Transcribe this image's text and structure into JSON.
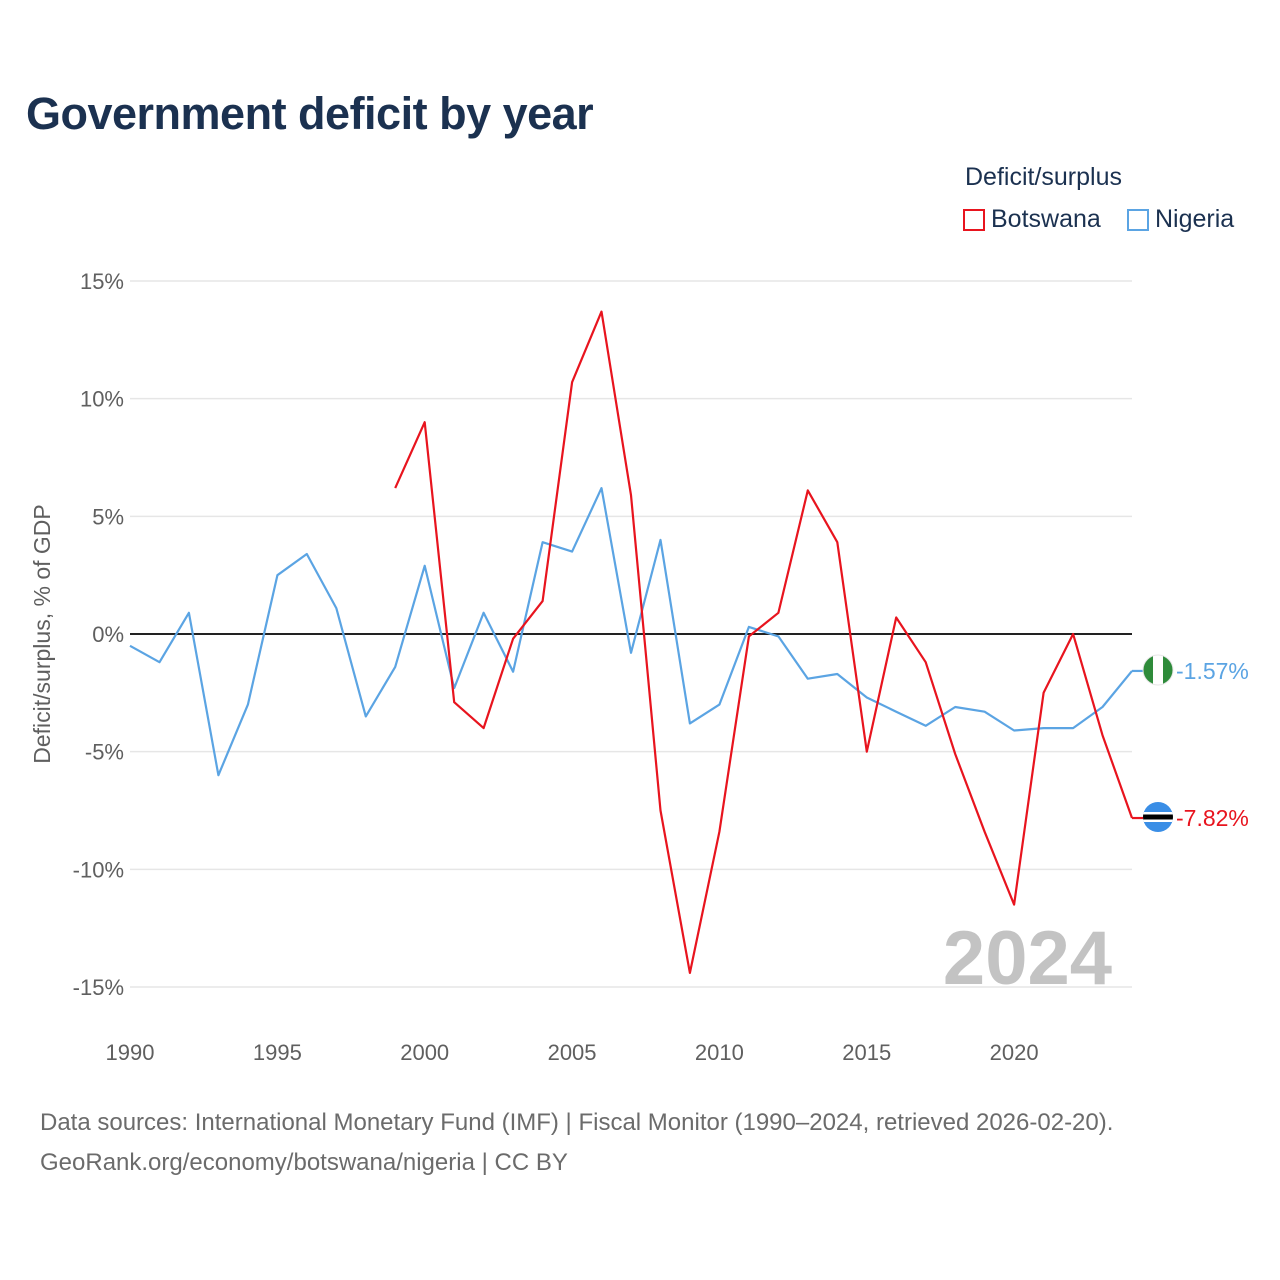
{
  "title": "Government deficit by year",
  "legend": {
    "title": "Deficit/surplus",
    "items": [
      {
        "name": "Botswana",
        "color": "#e8141e"
      },
      {
        "name": "Nigeria",
        "color": "#5ba4e3"
      }
    ]
  },
  "footer": {
    "line1": "Data sources: International Monetary Fund (IMF) | Fiscal Monitor (1990–2024, retrieved 2026-02-20).",
    "line2": "GeoRank.org/economy/botswana/nigeria | CC BY"
  },
  "chart_data": {
    "type": "line",
    "title": "Government deficit by year",
    "xlabel": "",
    "ylabel": "Deficit/surplus, % of GDP",
    "xlim": [
      1990,
      2024
    ],
    "ylim": [
      -15,
      15
    ],
    "x_ticks": [
      "1990",
      "1995",
      "2000",
      "2005",
      "2010",
      "2015",
      "2020"
    ],
    "x_tick_values": [
      1990,
      1995,
      2000,
      2005,
      2010,
      2015,
      2020
    ],
    "y_ticks": [
      "15%",
      "10%",
      "5%",
      "0%",
      "-5%",
      "-10%",
      "-15%"
    ],
    "y_tick_values": [
      15,
      10,
      5,
      0,
      -5,
      -10,
      -15
    ],
    "zero_line": true,
    "current_year": "2024",
    "series": [
      {
        "name": "Botswana",
        "color": "#e8141e",
        "end_label": "-7.82%",
        "flag": "botswana-flag",
        "x": [
          1999,
          2000,
          2001,
          2002,
          2003,
          2004,
          2005,
          2006,
          2007,
          2008,
          2009,
          2010,
          2011,
          2012,
          2013,
          2014,
          2015,
          2016,
          2017,
          2018,
          2019,
          2020,
          2021,
          2022,
          2023,
          2024
        ],
        "values": [
          6.2,
          9.0,
          -2.9,
          -4.0,
          -0.2,
          1.4,
          10.7,
          13.7,
          5.9,
          -7.5,
          -14.4,
          -8.4,
          -0.1,
          0.9,
          6.1,
          3.9,
          -5.0,
          0.7,
          -1.2,
          -5.1,
          -8.4,
          -11.5,
          -2.5,
          0.0,
          -4.3,
          -7.82
        ]
      },
      {
        "name": "Nigeria",
        "color": "#5ba4e3",
        "end_label": "-1.57%",
        "flag": "nigeria-flag",
        "x": [
          1990,
          1991,
          1992,
          1993,
          1994,
          1995,
          1996,
          1997,
          1998,
          1999,
          2000,
          2001,
          2002,
          2003,
          2004,
          2005,
          2006,
          2007,
          2008,
          2009,
          2010,
          2011,
          2012,
          2013,
          2014,
          2015,
          2016,
          2017,
          2018,
          2019,
          2020,
          2021,
          2022,
          2023,
          2024
        ],
        "values": [
          -0.5,
          -1.2,
          0.9,
          -6.0,
          -3.0,
          2.5,
          3.4,
          1.1,
          -3.5,
          -1.4,
          2.9,
          -2.3,
          0.9,
          -1.6,
          3.9,
          3.5,
          6.2,
          -0.8,
          4.0,
          -3.8,
          -3.0,
          0.3,
          -0.1,
          -1.9,
          -1.7,
          -2.7,
          -3.3,
          -3.9,
          -3.1,
          -3.3,
          -4.1,
          -4.0,
          -4.0,
          -3.1,
          -1.57
        ]
      }
    ]
  }
}
